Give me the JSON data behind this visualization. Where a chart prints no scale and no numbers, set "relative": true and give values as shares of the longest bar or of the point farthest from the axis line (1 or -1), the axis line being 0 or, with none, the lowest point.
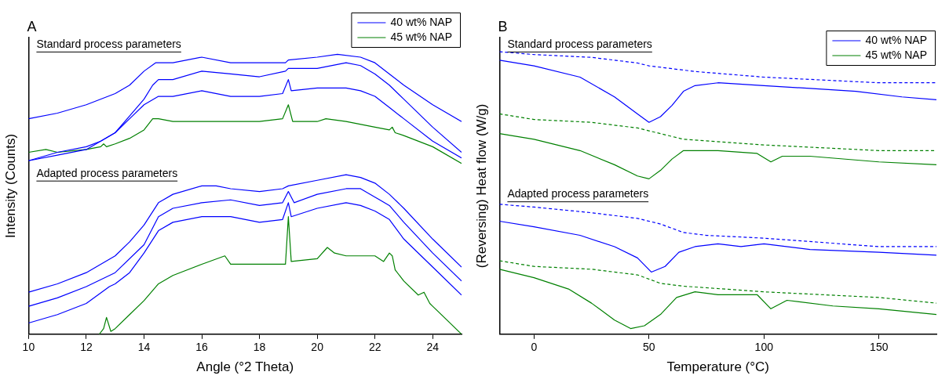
{
  "chart_data": [
    {
      "type": "line",
      "title": "A",
      "xlabel": "Angle (°2 Theta)",
      "ylabel": "Intensity (Counts)",
      "relative": true,
      "xlim": [
        10,
        25
      ],
      "xticks": [
        10,
        12,
        14,
        16,
        18,
        20,
        22,
        24
      ],
      "legend": "top right",
      "marker": "none",
      "annotations": [
        "Standard process parameters",
        "Adapted process parameters"
      ],
      "series": [
        {
          "name": "40 wt% NAP",
          "color": "#0000ff",
          "x": [
            10,
            11,
            12,
            13,
            13.5,
            14,
            14.4,
            15,
            16,
            17,
            18,
            18.9,
            19,
            20,
            20.7,
            21.5,
            22,
            22.5,
            23,
            24,
            25
          ],
          "values": [
            0.77,
            0.79,
            0.82,
            0.86,
            0.89,
            0.94,
            0.97,
            0.97,
            0.99,
            0.97,
            0.97,
            0.97,
            0.98,
            0.99,
            1.0,
            0.99,
            0.97,
            0.93,
            0.89,
            0.82,
            0.76
          ]
        },
        {
          "color": "#0000ff",
          "x": [
            10,
            11,
            12,
            12.5,
            13,
            13.5,
            14,
            14.3,
            14.5,
            15,
            16,
            17,
            18,
            18.9,
            19,
            20,
            21,
            21.5,
            22,
            22.5,
            23,
            24,
            25
          ],
          "values": [
            0.62,
            0.65,
            0.67,
            0.69,
            0.72,
            0.78,
            0.84,
            0.89,
            0.91,
            0.91,
            0.94,
            0.93,
            0.92,
            0.94,
            0.95,
            0.95,
            0.97,
            0.96,
            0.93,
            0.89,
            0.84,
            0.74,
            0.65
          ]
        },
        {
          "color": "#0000ff",
          "x": [
            10,
            11,
            12,
            12.5,
            13,
            13.5,
            14,
            14.5,
            15,
            16,
            17,
            18,
            18.8,
            19,
            19.1,
            20,
            21,
            21.5,
            22,
            22.5,
            23,
            24,
            25
          ],
          "values": [
            0.62,
            0.64,
            0.66,
            0.69,
            0.72,
            0.77,
            0.82,
            0.85,
            0.85,
            0.87,
            0.85,
            0.85,
            0.86,
            0.91,
            0.87,
            0.88,
            0.88,
            0.87,
            0.85,
            0.81,
            0.77,
            0.69,
            0.63
          ]
        },
        {
          "name": "45 wt% NAP",
          "color": "#008000",
          "x": [
            10,
            10.6,
            11,
            12,
            12.5,
            12.6,
            12.7,
            13,
            13.5,
            14,
            14.3,
            14.5,
            15,
            16,
            17,
            18,
            18.8,
            19,
            19.15,
            20,
            20.3,
            21,
            22,
            22.5,
            22.6,
            22.7,
            23,
            24,
            25
          ],
          "values": [
            0.65,
            0.66,
            0.65,
            0.66,
            0.67,
            0.68,
            0.67,
            0.68,
            0.7,
            0.73,
            0.77,
            0.77,
            0.76,
            0.76,
            0.76,
            0.76,
            0.77,
            0.82,
            0.76,
            0.76,
            0.77,
            0.76,
            0.74,
            0.73,
            0.74,
            0.72,
            0.71,
            0.67,
            0.61
          ]
        },
        {
          "color": "#0000ff",
          "x": [
            10,
            11,
            12,
            13,
            13.5,
            14,
            14.5,
            15,
            16,
            16.5,
            17,
            18,
            18.8,
            19,
            20,
            21,
            21.5,
            22,
            22.5,
            23,
            24,
            25
          ],
          "values": [
            0.15,
            0.18,
            0.22,
            0.28,
            0.33,
            0.39,
            0.47,
            0.5,
            0.53,
            0.53,
            0.52,
            0.51,
            0.52,
            0.53,
            0.55,
            0.57,
            0.56,
            0.54,
            0.5,
            0.45,
            0.34,
            0.24
          ]
        },
        {
          "color": "#0000ff",
          "x": [
            10,
            11,
            12,
            13,
            14,
            14.5,
            15,
            16,
            17,
            18,
            18.8,
            19,
            19.2,
            20,
            21,
            21.5,
            22,
            22.5,
            23,
            24,
            25
          ],
          "values": [
            0.1,
            0.13,
            0.17,
            0.22,
            0.32,
            0.42,
            0.45,
            0.47,
            0.48,
            0.46,
            0.47,
            0.51,
            0.47,
            0.5,
            0.52,
            0.52,
            0.49,
            0.46,
            0.4,
            0.29,
            0.19
          ]
        },
        {
          "color": "#0000ff",
          "x": [
            10,
            11,
            12,
            12.8,
            13,
            13.5,
            14,
            14.5,
            15,
            16,
            17,
            18,
            18.8,
            19,
            19.1,
            20,
            21,
            21.5,
            22,
            22.5,
            23,
            24,
            25
          ],
          "values": [
            0.04,
            0.07,
            0.11,
            0.17,
            0.18,
            0.22,
            0.29,
            0.37,
            0.4,
            0.42,
            0.42,
            0.4,
            0.41,
            0.47,
            0.42,
            0.45,
            0.47,
            0.46,
            0.44,
            0.41,
            0.34,
            0.24,
            0.14
          ]
        },
        {
          "color": "#008000",
          "x": [
            12.45,
            12.6,
            12.7,
            12.85,
            13,
            13.5,
            14,
            14.5,
            15,
            16,
            16.8,
            17,
            18,
            18.9,
            19,
            19.1,
            20,
            20.35,
            20.6,
            21,
            22,
            22.3,
            22.5,
            22.6,
            22.7,
            23,
            23.5,
            23.7,
            23.9,
            24,
            24.5,
            25
          ],
          "values": [
            0,
            0.02,
            0.06,
            0.01,
            0.02,
            0.07,
            0.12,
            0.18,
            0.21,
            0.25,
            0.28,
            0.25,
            0.25,
            0.25,
            0.42,
            0.26,
            0.27,
            0.31,
            0.29,
            0.28,
            0.28,
            0.26,
            0.29,
            0.28,
            0.23,
            0.19,
            0.14,
            0.15,
            0.11,
            0.1,
            0.05,
            0
          ]
        }
      ]
    },
    {
      "type": "line",
      "title": "B",
      "xlabel": "Temperature (°C)",
      "ylabel": "(Reversing) Heat flow (W/g)",
      "relative": true,
      "xlim": [
        -15,
        175
      ],
      "xticks": [
        0,
        50,
        100,
        150
      ],
      "legend": "top right",
      "marker": "none",
      "annotations": [
        "Standard process parameters",
        "Adapted process parameters"
      ],
      "series": [
        {
          "color": "#0000ff",
          "line_style": "dashed",
          "x": [
            -15,
            0,
            25,
            45,
            50,
            60,
            70,
            100,
            150,
            175
          ],
          "values": [
            1.0,
            0.99,
            0.98,
            0.96,
            0.95,
            0.94,
            0.93,
            0.91,
            0.89,
            0.89
          ]
        },
        {
          "name": "40 wt% NAP",
          "color": "#0000ff",
          "line_style": "solid",
          "x": [
            -15,
            0,
            20,
            35,
            45,
            50,
            55,
            60,
            65,
            70,
            80,
            100,
            120,
            140,
            160,
            175
          ],
          "values": [
            0.97,
            0.95,
            0.91,
            0.84,
            0.78,
            0.75,
            0.77,
            0.81,
            0.86,
            0.88,
            0.89,
            0.88,
            0.87,
            0.86,
            0.84,
            0.83
          ]
        },
        {
          "color": "#008000",
          "line_style": "dashed",
          "x": [
            -15,
            0,
            25,
            45,
            55,
            65,
            100,
            150,
            175
          ],
          "values": [
            0.78,
            0.76,
            0.75,
            0.73,
            0.71,
            0.69,
            0.67,
            0.65,
            0.65
          ]
        },
        {
          "name": "45 wt% NAP",
          "color": "#008000",
          "line_style": "solid",
          "x": [
            -15,
            0,
            10,
            20,
            35,
            45,
            50,
            55,
            60,
            65,
            70,
            80,
            97,
            103,
            108,
            120,
            150,
            175
          ],
          "values": [
            0.71,
            0.69,
            0.67,
            0.65,
            0.6,
            0.56,
            0.55,
            0.58,
            0.62,
            0.65,
            0.65,
            0.65,
            0.64,
            0.61,
            0.63,
            0.63,
            0.61,
            0.6
          ]
        },
        {
          "color": "#0000ff",
          "line_style": "dashed",
          "x": [
            -15,
            0,
            25,
            45,
            55,
            65,
            75,
            100,
            150,
            175
          ],
          "values": [
            0.46,
            0.45,
            0.43,
            0.41,
            0.39,
            0.36,
            0.35,
            0.34,
            0.31,
            0.31
          ]
        },
        {
          "color": "#0000ff",
          "line_style": "solid",
          "x": [
            -15,
            0,
            20,
            35,
            45,
            51,
            57,
            63,
            70,
            80,
            90,
            100,
            120,
            150,
            175
          ],
          "values": [
            0.4,
            0.38,
            0.35,
            0.31,
            0.27,
            0.22,
            0.24,
            0.29,
            0.31,
            0.32,
            0.31,
            0.32,
            0.3,
            0.29,
            0.28
          ]
        },
        {
          "color": "#008000",
          "line_style": "dashed",
          "x": [
            -15,
            0,
            25,
            45,
            55,
            65,
            100,
            150,
            175
          ],
          "values": [
            0.26,
            0.24,
            0.23,
            0.21,
            0.18,
            0.17,
            0.15,
            0.13,
            0.11
          ]
        },
        {
          "color": "#008000",
          "line_style": "solid",
          "x": [
            -15,
            0,
            15,
            25,
            35,
            42,
            48,
            55,
            62,
            70,
            80,
            97,
            103,
            110,
            130,
            150,
            175
          ],
          "values": [
            0.23,
            0.2,
            0.16,
            0.11,
            0.05,
            0.02,
            0.03,
            0.07,
            0.13,
            0.15,
            0.14,
            0.14,
            0.09,
            0.12,
            0.1,
            0.09,
            0.07
          ]
        }
      ]
    }
  ]
}
